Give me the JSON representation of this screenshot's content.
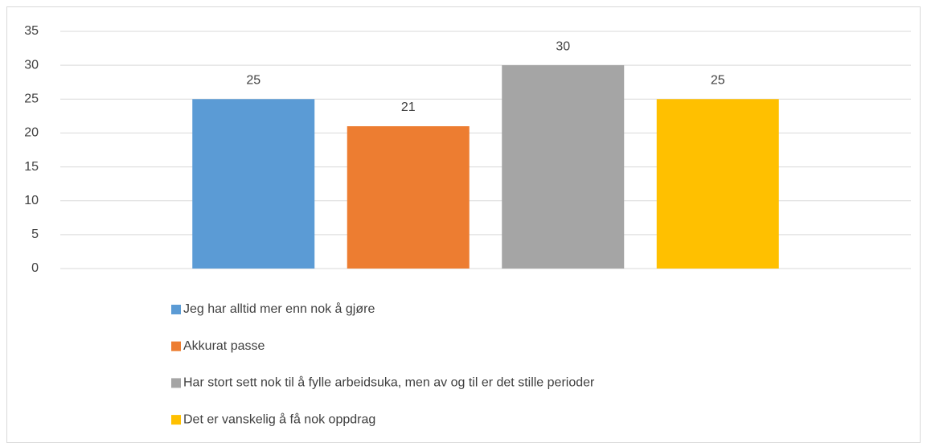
{
  "chart_data": {
    "type": "bar",
    "categories": [
      null
    ],
    "series": [
      {
        "name": "Jeg har alltid mer enn nok å gjøre",
        "color": "#5b9bd5",
        "values": [
          25
        ]
      },
      {
        "name": "Akkurat passe",
        "color": "#ed7d31",
        "values": [
          21
        ]
      },
      {
        "name": "Har stort sett nok til å fylle arbeidsuka, men av og til er det stille perioder",
        "color": "#a5a5a5",
        "values": [
          30
        ]
      },
      {
        "name": "Det er vanskelig å få nok oppdrag",
        "color": "#ffc000",
        "values": [
          25
        ]
      }
    ],
    "ylim": [
      0,
      35
    ],
    "yticks": [
      0,
      5,
      10,
      15,
      20,
      25,
      30,
      35
    ],
    "grid": true,
    "legend": "bottom",
    "data_labels": true
  }
}
